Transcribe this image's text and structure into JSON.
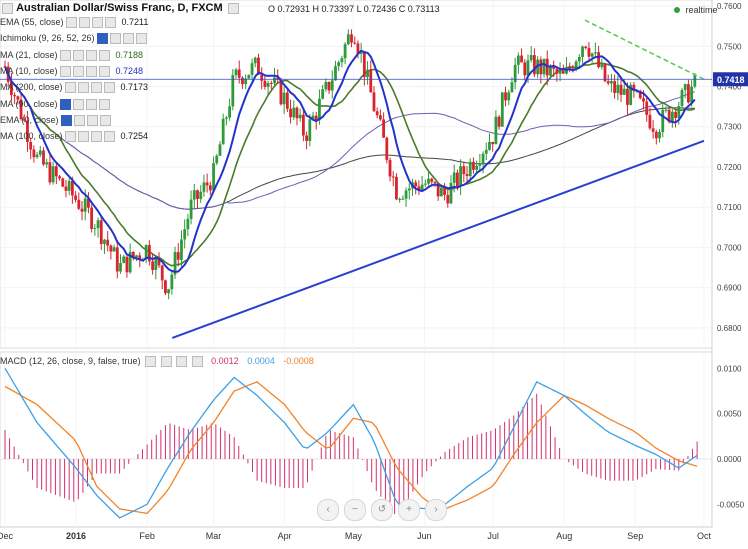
{
  "title": "Australian Dollar/Swiss Franc, D, FXCM",
  "ohlc": "O 0.72931 H 0.73397 L 0.72436 C 0.73113",
  "realtime_label": "realtime",
  "price_badge": "0.7418",
  "overlays": [
    {
      "label": "EMA (55, close)",
      "value": "0.7211",
      "value_color": "#1a1a1a"
    },
    {
      "label": "Ichimoku (9, 26, 52, 26)",
      "value": "",
      "value_color": "#1a1a1a"
    },
    {
      "label": "MA (21, close)",
      "value": "0.7188",
      "value_color": "#2d6a1f"
    },
    {
      "label": "MA (10, close)",
      "value": "0.7248",
      "value_color": "#1f2fbf"
    },
    {
      "label": "MA (200, close)",
      "value": "0.7173",
      "value_color": "#1a1a1a"
    },
    {
      "label": "MA (90, close)",
      "value": "",
      "value_color": "#1a1a1a"
    },
    {
      "label": "EMA (0, close)",
      "value": "",
      "value_color": "#1a1a1a"
    },
    {
      "label": "MA (100, close)",
      "value": "0.7254",
      "value_color": "#1a1a1a"
    }
  ],
  "macd_legend": {
    "label": "MACD (12, 26, close, 9, false, true)",
    "hist_value": "0.0012",
    "macd_value": "0.0004",
    "signal_value": "-0.0008"
  },
  "colors": {
    "up_candle": "#2f9a3a",
    "down_candle": "#d9242f",
    "ma10": "#2233cc",
    "ma21": "#4a7a2a",
    "ma100": "#6a5fb5",
    "ma200": "#444444",
    "trendline": "#2a3fd0",
    "resistance": "#4ad04a",
    "macd": "#3da0e6",
    "signal": "#f0842a",
    "histogram": "#d2306f"
  },
  "nav_icons": [
    "arrow-left-icon",
    "zoom-out-icon",
    "reset-icon",
    "zoom-in-icon",
    "arrow-right-icon"
  ],
  "chart_data": [
    {
      "type": "candlestick",
      "title": "Australian Dollar/Swiss Franc, D, FXCM",
      "x_tick_labels": [
        "Dec",
        "2016",
        "Feb",
        "Mar",
        "Apr",
        "May",
        "Jun",
        "Jul",
        "Aug",
        "Sep",
        "Oct"
      ],
      "y_tick_labels": [
        "0.7600",
        "0.7500",
        "0.7400",
        "0.7300",
        "0.7200",
        "0.7100",
        "0.7000",
        "0.6900",
        "0.6800"
      ],
      "ylim": [
        0.675,
        0.7615
      ],
      "last_price": 0.7418,
      "support_trendline": {
        "from": [
          "Feb 12",
          0.6775
        ],
        "to": [
          "Oct 1",
          0.7265
        ]
      },
      "resistance_trendline": {
        "from": [
          "Aug 10",
          0.7565
        ],
        "to": [
          "Oct 1",
          0.7418
        ]
      },
      "close_series": {
        "dates": [
          "Dec 1",
          "Dec 15",
          "Jan 1",
          "Jan 10",
          "Jan 20",
          "Feb 1",
          "Feb 10",
          "Feb 20",
          "Mar 1",
          "Mar 10",
          "Mar 20",
          "Apr 1",
          "Apr 10",
          "Apr 20",
          "May 1",
          "May 10",
          "May 20",
          "Jun 1",
          "Jun 10",
          "Jun 20",
          "Jul 1",
          "Jul 10",
          "Jul 20",
          "Aug 1",
          "Aug 10",
          "Aug 20",
          "Sep 1",
          "Sep 10",
          "Sep 20",
          "Sep 28"
        ],
        "values": [
          0.745,
          0.722,
          0.712,
          0.706,
          0.695,
          0.7,
          0.69,
          0.71,
          0.718,
          0.742,
          0.745,
          0.737,
          0.728,
          0.74,
          0.755,
          0.735,
          0.714,
          0.716,
          0.713,
          0.72,
          0.728,
          0.745,
          0.745,
          0.742,
          0.752,
          0.74,
          0.737,
          0.73,
          0.736,
          0.741
        ]
      },
      "series": [
        {
          "name": "MA (10, close)",
          "value": 0.7248
        },
        {
          "name": "MA (21, close)",
          "value": 0.7188
        },
        {
          "name": "MA (100, close)",
          "value": 0.7254
        },
        {
          "name": "MA (200, close)",
          "value": 0.7173
        },
        {
          "name": "EMA (55, close)",
          "value": 0.7211
        }
      ]
    },
    {
      "type": "macd",
      "title": "MACD (12, 26, close, 9, false, true)",
      "y_tick_labels": [
        "0.0100",
        "0.0050",
        "0.0000",
        "-0.0050"
      ],
      "ylim": [
        -0.0075,
        0.0118
      ],
      "latest": {
        "histogram": 0.0012,
        "macd": 0.0004,
        "signal": -0.0008
      },
      "dates": [
        "Dec 1",
        "Dec 15",
        "Jan 1",
        "Jan 10",
        "Jan 20",
        "Feb 1",
        "Feb 10",
        "Feb 20",
        "Mar 1",
        "Mar 10",
        "Mar 20",
        "Apr 1",
        "Apr 10",
        "Apr 20",
        "May 1",
        "May 10",
        "May 20",
        "Jun 1",
        "Jun 10",
        "Jun 20",
        "Jul 1",
        "Jul 10",
        "Jul 20",
        "Aug 1",
        "Aug 10",
        "Aug 20",
        "Sep 1",
        "Sep 10",
        "Sep 20",
        "Sep 28"
      ],
      "series": [
        {
          "name": "MACD",
          "values": [
            0.01,
            0.004,
            -0.001,
            -0.004,
            -0.0065,
            -0.005,
            -0.001,
            0.003,
            0.0065,
            0.009,
            0.007,
            0.004,
            0.001,
            0.003,
            0.006,
            0.002,
            -0.005,
            -0.0055,
            -0.005,
            -0.003,
            -0.001,
            0.0035,
            0.0085,
            0.007,
            0.005,
            0.003,
            0.0015,
            0.0005,
            -0.001,
            0.0004
          ]
        },
        {
          "name": "Signal",
          "values": [
            0.008,
            0.006,
            0.002,
            -0.003,
            -0.0055,
            -0.006,
            -0.0035,
            0.001,
            0.004,
            0.0075,
            0.0085,
            0.006,
            0.003,
            0.001,
            0.0045,
            0.004,
            -0.001,
            -0.0045,
            -0.0055,
            -0.0045,
            -0.003,
            0.0005,
            0.004,
            0.007,
            0.006,
            0.0045,
            0.003,
            0.0012,
            -0.0002,
            -0.0008
          ]
        }
      ]
    }
  ]
}
